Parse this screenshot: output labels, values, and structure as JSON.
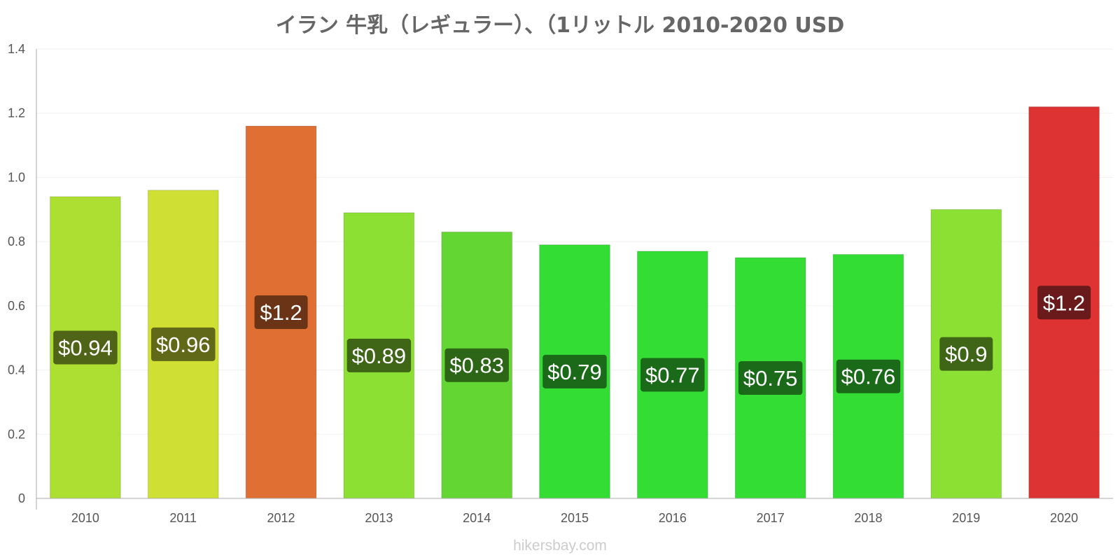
{
  "chart_data": {
    "type": "bar",
    "title": "イラン 牛乳（レギュラー）、（1リットル 2010-2020 USD",
    "categories": [
      "2010",
      "2011",
      "2012",
      "2013",
      "2014",
      "2015",
      "2016",
      "2017",
      "2018",
      "2019",
      "2020"
    ],
    "values": [
      0.94,
      0.96,
      1.16,
      0.89,
      0.83,
      0.79,
      0.77,
      0.75,
      0.76,
      0.9,
      1.22
    ],
    "data_labels": [
      "$0.94",
      "$0.96",
      "$1.2",
      "$0.89",
      "$0.83",
      "$0.79",
      "$0.77",
      "$0.75",
      "$0.76",
      "$0.9",
      "$1.2"
    ],
    "bar_colors": [
      "#addf33",
      "#cfdf33",
      "#df6f33",
      "#8cdf33",
      "#64d633",
      "#33dd33",
      "#33dd33",
      "#33dd33",
      "#33dd33",
      "#8cdf33",
      "#dd3333"
    ],
    "label_colors": [
      "#4f6417",
      "#616818",
      "#6b3417",
      "#3f6617",
      "#2c6616",
      "#1a6a1a",
      "#1a6a1a",
      "#1a6a1a",
      "#1a6a1a",
      "#3f6617",
      "#6a1a1a"
    ],
    "ylim": [
      0,
      1.4
    ],
    "yticks": [
      "0",
      "0.2",
      "0.4",
      "0.6",
      "0.8",
      "1.0",
      "1.2",
      "1.4"
    ],
    "xlabel": "",
    "ylabel": "",
    "grid": true,
    "legend": "none"
  },
  "footer": {
    "credit": "hikersbay.com"
  }
}
